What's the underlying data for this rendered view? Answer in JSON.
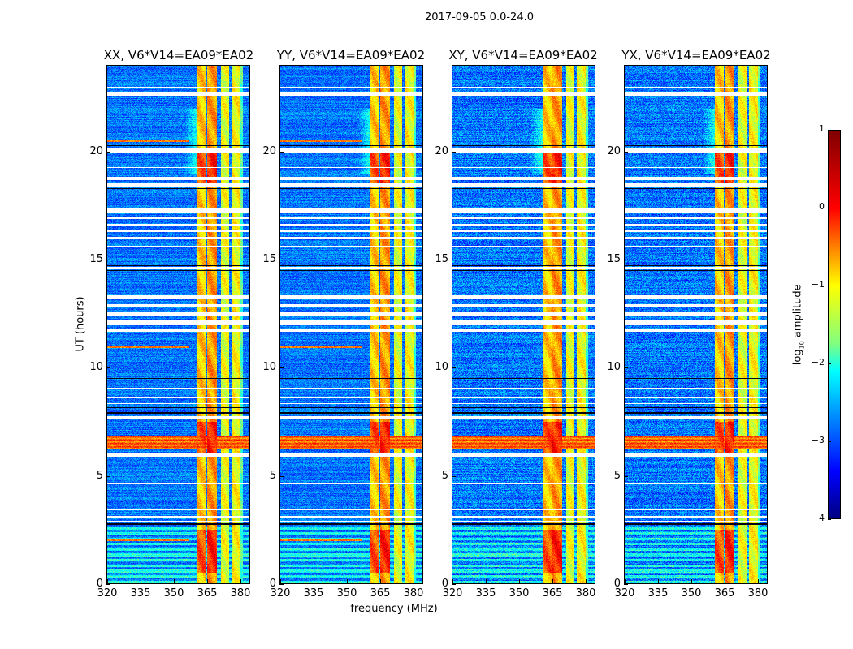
{
  "chart_data": {
    "type": "heatmap",
    "title": "2017-09-05 0.0-24.0",
    "panels": [
      {
        "title": "XX, V6*V14=EA09*EA02",
        "pol": "XX"
      },
      {
        "title": "YY, V6*V14=EA09*EA02",
        "pol": "YY"
      },
      {
        "title": "XY, V6*V14=EA09*EA02",
        "pol": "XY"
      },
      {
        "title": "YX, V6*V14=EA09*EA02",
        "pol": "YX"
      }
    ],
    "xlabel": "frequency (MHz)",
    "ylabel": "UT (hours)",
    "xlim": [
      320,
      384
    ],
    "ylim": [
      0,
      24
    ],
    "xticks": [
      "320",
      "335",
      "350",
      "365",
      "380"
    ],
    "yticks": [
      "0",
      "5",
      "10",
      "15",
      "20"
    ],
    "colorbar": {
      "label_prefix": "log",
      "label_sub": "10",
      "label_suffix": " amplitude",
      "range": [
        -4,
        1
      ],
      "ticks": [
        "1",
        "0",
        "−1",
        "−2",
        "−3",
        "−4"
      ],
      "colormap": "jet"
    },
    "background_log_amplitude": -3.0,
    "rfi_bands_mhz": [
      {
        "range": [
          360.5,
          364.5
        ],
        "level": -0.5
      },
      {
        "range": [
          365.0,
          369.5
        ],
        "level": -0.2
      },
      {
        "range": [
          371.3,
          375.0
        ],
        "level": -0.9
      },
      {
        "range": [
          376.0,
          380.0
        ],
        "level": -0.8
      }
    ],
    "strong_rfi_hours": [
      [
        5.9,
        7.5
      ],
      [
        18.6,
        20.2
      ],
      [
        0.5,
        2.5
      ]
    ],
    "broadband_rfi_hours": [
      [
        6.2,
        6.8
      ]
    ],
    "flagged_hours": [
      [
        2.82,
        2.9
      ],
      [
        3.05,
        3.12
      ],
      [
        3.4,
        3.45
      ],
      [
        4.6,
        4.65
      ],
      [
        5.0,
        5.05
      ],
      [
        5.85,
        6.05
      ],
      [
        7.6,
        7.75
      ],
      [
        8.3,
        8.36
      ],
      [
        8.6,
        8.65
      ],
      [
        9.0,
        9.06
      ],
      [
        11.65,
        11.8
      ],
      [
        11.95,
        12.2
      ],
      [
        12.4,
        12.55
      ],
      [
        12.8,
        12.95
      ],
      [
        13.15,
        13.35
      ],
      [
        14.6,
        14.68
      ],
      [
        15.6,
        15.66
      ],
      [
        16.0,
        16.05
      ],
      [
        16.3,
        16.35
      ],
      [
        16.6,
        16.65
      ],
      [
        16.9,
        16.97
      ],
      [
        17.2,
        17.4
      ],
      [
        18.4,
        18.55
      ],
      [
        18.7,
        18.85
      ],
      [
        19.25,
        19.3
      ],
      [
        19.55,
        19.6
      ],
      [
        19.95,
        20.2
      ],
      [
        20.95,
        21.0
      ],
      [
        22.6,
        22.75
      ],
      [
        23.0,
        23.04
      ]
    ],
    "dark_hours": [
      2.75,
      7.9,
      8.15,
      9.5,
      11.6,
      13.0,
      14.5,
      14.72,
      18.3,
      20.3
    ]
  }
}
